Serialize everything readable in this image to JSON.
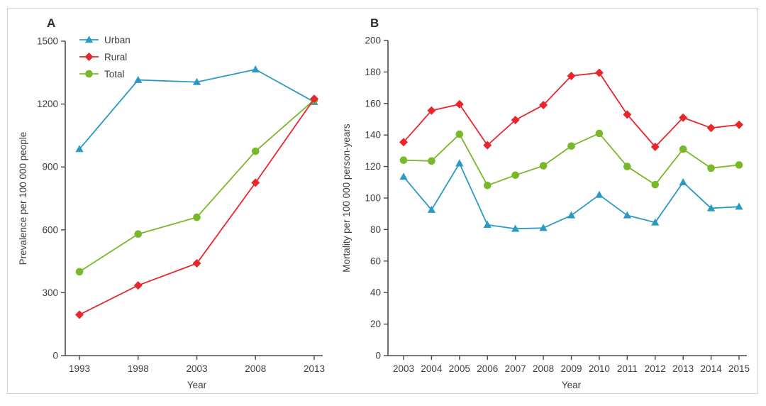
{
  "figure": {
    "background": "#ffffff",
    "border_color": "#c6d8cf",
    "text_color": "#3e3e3e",
    "axis_color": "#4a4a4a"
  },
  "chart_data": [
    {
      "type": "line",
      "panel_label": "A",
      "xlabel": "Year",
      "ylabel": "Prevalence per 100 000 people",
      "x_categories": [
        "1993",
        "1998",
        "2003",
        "2008",
        "2013"
      ],
      "ylim": [
        0,
        1500
      ],
      "ytick_step": 300,
      "grid": false,
      "legend_position": "top-left inside",
      "legend_entries": [
        "Urban",
        "Rural",
        "Total"
      ],
      "series": [
        {
          "name": "Urban",
          "marker": "triangle",
          "color": "#2a9ac5",
          "values": [
            985,
            1315,
            1305,
            1365,
            1210
          ]
        },
        {
          "name": "Rural",
          "marker": "diamond",
          "color": "#e8262c",
          "values": [
            195,
            335,
            440,
            825,
            1225
          ]
        },
        {
          "name": "Total",
          "marker": "circle",
          "color": "#79b829",
          "values": [
            400,
            580,
            660,
            975,
            1220
          ]
        }
      ]
    },
    {
      "type": "line",
      "panel_label": "B",
      "xlabel": "Year",
      "ylabel": "Mortality per 100 000 person-years",
      "x_categories": [
        "2003",
        "2004",
        "2005",
        "2006",
        "2007",
        "2008",
        "2009",
        "2010",
        "2011",
        "2012",
        "2013",
        "2014",
        "2015"
      ],
      "ylim": [
        0,
        200
      ],
      "ytick_step": 20,
      "grid": false,
      "legend_position": "none",
      "series": [
        {
          "name": "Urban",
          "marker": "triangle",
          "color": "#2a9ac5",
          "values": [
            113.5,
            92.5,
            122,
            83,
            80.5,
            81,
            89,
            102,
            89,
            84.5,
            110,
            93.5,
            94.5
          ]
        },
        {
          "name": "Rural",
          "marker": "diamond",
          "color": "#e8262c",
          "values": [
            135.5,
            155.5,
            159.5,
            133.5,
            149.5,
            159,
            177.5,
            179.5,
            153,
            132.5,
            151,
            144.5,
            146.5
          ]
        },
        {
          "name": "Total",
          "marker": "circle",
          "color": "#79b829",
          "values": [
            124,
            123.5,
            140.5,
            108,
            114.5,
            120.5,
            133,
            141,
            120,
            108.5,
            131,
            119,
            121
          ]
        }
      ]
    }
  ]
}
